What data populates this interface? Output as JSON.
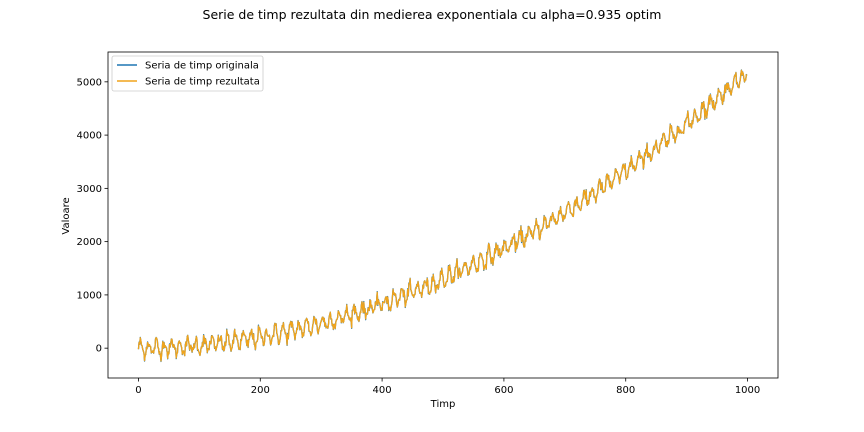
{
  "chart_data": {
    "type": "line",
    "title": "Serie de timp rezultata din medierea exponentiala cu alpha=0.935 optim",
    "xlabel": "Timp",
    "ylabel": "Valoare",
    "xlim": [
      -50,
      1050
    ],
    "ylim": [
      -560,
      5560
    ],
    "xticks": [
      0,
      200,
      400,
      600,
      800,
      1000
    ],
    "yticks": [
      0,
      1000,
      2000,
      3000,
      4000,
      5000
    ],
    "grid": false,
    "legend_position": "top-left",
    "series": [
      {
        "name": "Seria de timp originala",
        "color": "#1f77b4",
        "model": {
          "n": 1000,
          "quadratic": 0.0052,
          "linear": 0.0,
          "offset": 0,
          "seasonal_amplitude": 120,
          "seasonal_period": 13,
          "noise": 60
        }
      },
      {
        "name": "Seria de timp rezultata",
        "color": "#f0a41c",
        "model": {
          "alpha": 0.935,
          "smoothing_of": "Seria de timp originala"
        }
      }
    ]
  }
}
